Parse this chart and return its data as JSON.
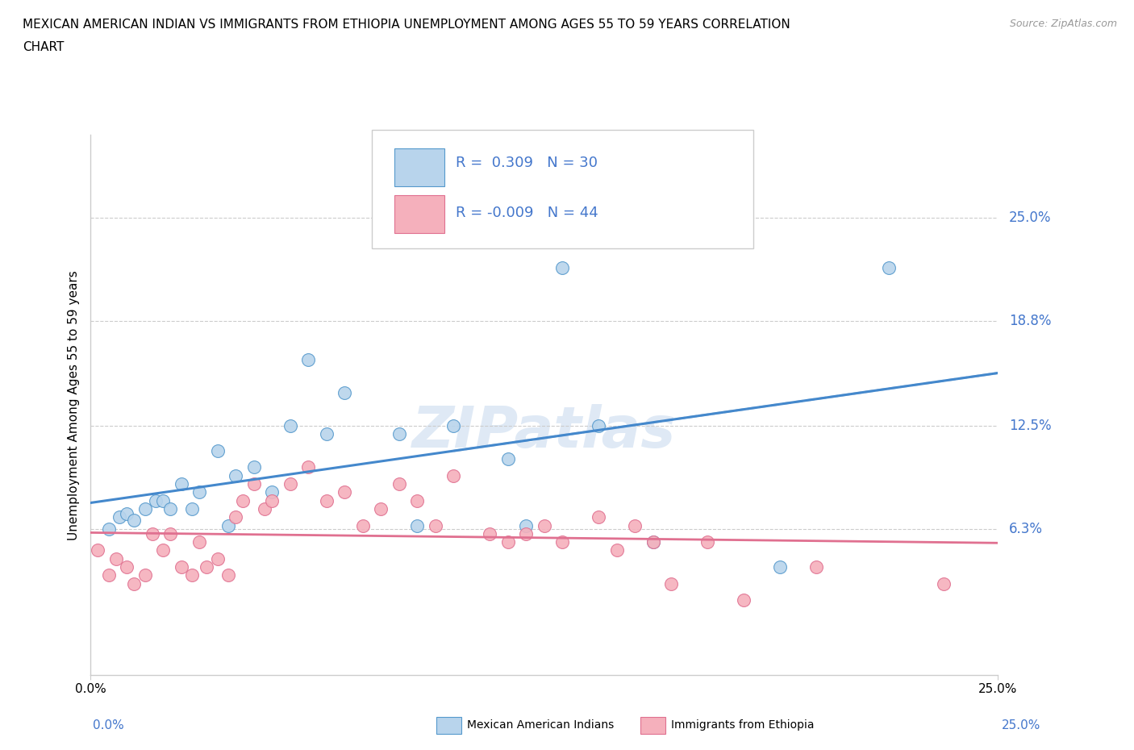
{
  "title_line1": "MEXICAN AMERICAN INDIAN VS IMMIGRANTS FROM ETHIOPIA UNEMPLOYMENT AMONG AGES 55 TO 59 YEARS CORRELATION",
  "title_line2": "CHART",
  "source": "Source: ZipAtlas.com",
  "ylabel": "Unemployment Among Ages 55 to 59 years",
  "xlim": [
    0.0,
    0.25
  ],
  "ylim": [
    -0.025,
    0.3
  ],
  "ytick_labels": [
    "6.3%",
    "12.5%",
    "18.8%",
    "25.0%"
  ],
  "ytick_values": [
    0.063,
    0.125,
    0.188,
    0.25
  ],
  "grid_color": "#cccccc",
  "color_blue_fill": "#b8d4ec",
  "color_blue_edge": "#5599cc",
  "color_blue_line": "#4488cc",
  "color_blue_dash": "#b0c8e0",
  "color_pink_fill": "#f5b0bc",
  "color_pink_edge": "#e07090",
  "color_pink_line": "#e07090",
  "color_label": "#4477cc",
  "blue_R": 0.309,
  "blue_N": 30,
  "pink_R": -0.009,
  "pink_N": 44,
  "blue_scatter_x": [
    0.005,
    0.008,
    0.01,
    0.012,
    0.015,
    0.018,
    0.02,
    0.022,
    0.025,
    0.028,
    0.03,
    0.035,
    0.038,
    0.04,
    0.045,
    0.05,
    0.055,
    0.06,
    0.065,
    0.07,
    0.085,
    0.09,
    0.1,
    0.115,
    0.12,
    0.13,
    0.14,
    0.155,
    0.19,
    0.22
  ],
  "blue_scatter_y": [
    0.063,
    0.07,
    0.072,
    0.068,
    0.075,
    0.08,
    0.08,
    0.075,
    0.09,
    0.075,
    0.085,
    0.11,
    0.065,
    0.095,
    0.1,
    0.085,
    0.125,
    0.165,
    0.12,
    0.145,
    0.12,
    0.065,
    0.125,
    0.105,
    0.065,
    0.22,
    0.125,
    0.055,
    0.04,
    0.22
  ],
  "pink_scatter_x": [
    0.002,
    0.005,
    0.007,
    0.01,
    0.012,
    0.015,
    0.017,
    0.02,
    0.022,
    0.025,
    0.028,
    0.03,
    0.032,
    0.035,
    0.038,
    0.04,
    0.042,
    0.045,
    0.048,
    0.05,
    0.055,
    0.06,
    0.065,
    0.07,
    0.075,
    0.08,
    0.085,
    0.09,
    0.095,
    0.1,
    0.11,
    0.115,
    0.12,
    0.125,
    0.13,
    0.14,
    0.145,
    0.15,
    0.155,
    0.16,
    0.17,
    0.18,
    0.2,
    0.235
  ],
  "pink_scatter_y": [
    0.05,
    0.035,
    0.045,
    0.04,
    0.03,
    0.035,
    0.06,
    0.05,
    0.06,
    0.04,
    0.035,
    0.055,
    0.04,
    0.045,
    0.035,
    0.07,
    0.08,
    0.09,
    0.075,
    0.08,
    0.09,
    0.1,
    0.08,
    0.085,
    0.065,
    0.075,
    0.09,
    0.08,
    0.065,
    0.095,
    0.06,
    0.055,
    0.06,
    0.065,
    0.055,
    0.07,
    0.05,
    0.065,
    0.055,
    0.03,
    0.055,
    0.02,
    0.04,
    0.03
  ],
  "legend_label_blue": "Mexican American Indians",
  "legend_label_pink": "Immigrants from Ethiopia",
  "watermark_text": "ZIPatlas",
  "watermark_color": "#c5d8ee",
  "watermark_alpha": 0.55
}
